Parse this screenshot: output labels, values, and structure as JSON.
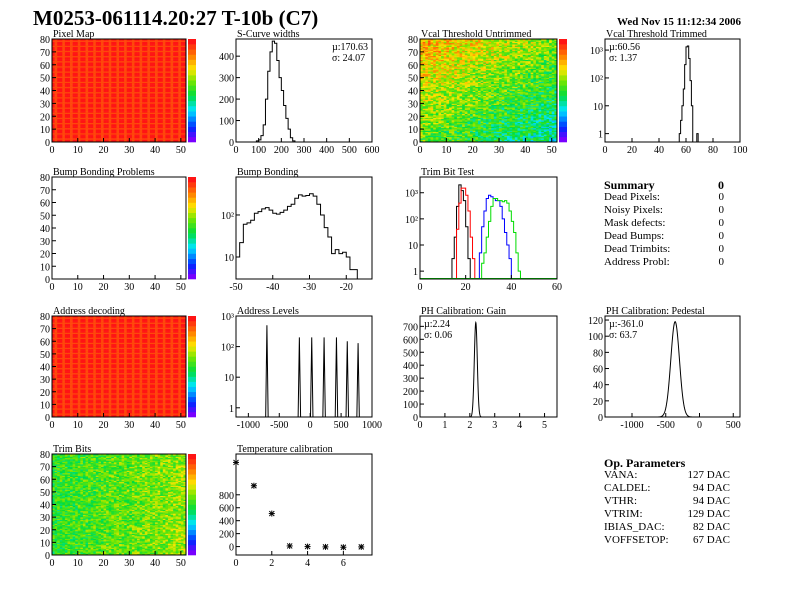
{
  "header": {
    "title": "M0253-061114.20:27 T-10b (C7)",
    "date": "Wed Nov 15 11:12:34 2006"
  },
  "summary": {
    "title": "Summary",
    "total": "0",
    "rows": [
      {
        "label": "Dead Pixels:",
        "value": "0"
      },
      {
        "label": "Noisy Pixels:",
        "value": "0"
      },
      {
        "label": "Mask defects:",
        "value": "0"
      },
      {
        "label": "Dead Bumps:",
        "value": "0"
      },
      {
        "label": "Dead Trimbits:",
        "value": "0"
      },
      {
        "label": "Address Probl:",
        "value": "0"
      }
    ]
  },
  "op_params": {
    "title": "Op. Parameters",
    "rows": [
      {
        "label": "VANA:",
        "value": "127 DAC"
      },
      {
        "label": "CALDEL:",
        "value": "94 DAC"
      },
      {
        "label": "VTHR:",
        "value": "94 DAC"
      },
      {
        "label": "VTRIM:",
        "value": "129 DAC"
      },
      {
        "label": "IBIAS_DAC:",
        "value": "82 DAC"
      },
      {
        "label": "VOFFSETOP:",
        "value": "67 DAC"
      }
    ]
  },
  "chart_data": [
    {
      "id": "pixel-map",
      "type": "heatmap",
      "title": "Pixel Map",
      "xlim": [
        0,
        52
      ],
      "ylim": [
        0,
        80
      ],
      "xticks": [
        0,
        10,
        20,
        30,
        40,
        50
      ],
      "yticks": [
        0,
        10,
        20,
        30,
        40,
        50,
        60,
        70,
        80
      ],
      "zlim": [
        0,
        10
      ],
      "pattern": "uniform-max"
    },
    {
      "id": "s-curve-widths",
      "type": "bar",
      "title": "S-Curve widths",
      "xlim": [
        0,
        600
      ],
      "ylim": [
        0,
        480
      ],
      "xticks": [
        0,
        100,
        200,
        300,
        400,
        500,
        600
      ],
      "yticks": [
        0,
        100,
        200,
        300,
        400
      ],
      "stats": [
        "µ:170.63",
        "σ: 24.07"
      ],
      "bin_start": 90,
      "bin_width": 10,
      "series": [
        {
          "color": "#000000",
          "values": [
            5,
            10,
            30,
            80,
            200,
            330,
            420,
            470,
            460,
            380,
            300,
            240,
            170,
            110,
            60,
            20,
            5
          ]
        }
      ]
    },
    {
      "id": "vcal-threshold-untrimmed",
      "type": "heatmap",
      "title": "Vcal Threshold Untrimmed",
      "xlim": [
        0,
        52
      ],
      "ylim": [
        0,
        80
      ],
      "xticks": [
        0,
        10,
        20,
        30,
        40,
        50
      ],
      "yticks": [
        0,
        10,
        20,
        30,
        40,
        50,
        60,
        70,
        80
      ],
      "zlim": [
        88,
        126
      ],
      "pattern": "gradient-noise"
    },
    {
      "id": "vcal-threshold-trimmed",
      "type": "bar",
      "title": "Vcal Threshold Trimmed",
      "log": true,
      "xlim": [
        0,
        100
      ],
      "ylim": [
        0.5,
        2500
      ],
      "xticks": [
        0,
        20,
        40,
        60,
        80,
        100
      ],
      "yticks": [
        1,
        10,
        100,
        1000
      ],
      "ytick_labels": [
        "1",
        "10",
        "10²",
        "10³"
      ],
      "stats": [
        "µ:60.56",
        "σ: 1.37"
      ],
      "bin_start": 55,
      "bin_width": 1,
      "series": [
        {
          "color": "#000000",
          "values": [
            1,
            3,
            10,
            40,
            300,
            1300,
            1400,
            500,
            80,
            10,
            0,
            0,
            0,
            1
          ]
        }
      ]
    },
    {
      "id": "bump-bonding-problems",
      "type": "heatmap",
      "title": "Bump Bonding Problems",
      "xlim": [
        0,
        52
      ],
      "ylim": [
        0,
        80
      ],
      "xticks": [
        0,
        10,
        20,
        30,
        40,
        50
      ],
      "yticks": [
        0,
        10,
        20,
        30,
        40,
        50,
        60,
        70,
        80
      ],
      "zlim": [
        -2,
        2
      ],
      "pattern": "empty"
    },
    {
      "id": "bump-bonding",
      "type": "bar",
      "title": "Bump Bonding",
      "log": true,
      "xlim": [
        -50,
        -13
      ],
      "ylim": [
        3,
        800
      ],
      "xticks": [
        -50,
        -40,
        -30,
        -20
      ],
      "yticks": [
        10,
        100
      ],
      "ytick_labels": [
        "10",
        "10²"
      ],
      "bin_start": -50,
      "bin_width": 1,
      "series": [
        {
          "color": "#000000",
          "values": [
            10,
            22,
            60,
            65,
            75,
            110,
            120,
            140,
            150,
            130,
            110,
            105,
            115,
            130,
            160,
            180,
            250,
            300,
            280,
            290,
            320,
            280,
            180,
            100,
            50,
            30,
            12,
            15,
            12,
            13,
            10,
            5,
            5
          ]
        }
      ]
    },
    {
      "id": "trim-bit-test",
      "type": "bar",
      "title": "Trim Bit Test",
      "log": true,
      "xlim": [
        0,
        60
      ],
      "ylim": [
        0.5,
        4000
      ],
      "xticks": [
        0,
        20,
        40,
        60
      ],
      "yticks": [
        1,
        10,
        100,
        1000
      ],
      "ytick_labels": [
        "1",
        "10",
        "10²",
        "10³"
      ],
      "bin_width": 1,
      "series": [
        {
          "color": "#000000",
          "bin_start": 14,
          "values": [
            3,
            20,
            300,
            2000,
            1200,
            500,
            50,
            3
          ]
        },
        {
          "color": "#ff0000",
          "bin_start": 16,
          "values": [
            40,
            400,
            1500,
            1500,
            800,
            200,
            20,
            3
          ]
        },
        {
          "color": "#0000ff",
          "bin_start": 26,
          "values": [
            5,
            50,
            200,
            600,
            800,
            700,
            600,
            500,
            500,
            300,
            100,
            30,
            10,
            3
          ]
        },
        {
          "color": "#00dd00",
          "bin_start": 27,
          "values": [
            2,
            5,
            20,
            80,
            300,
            600,
            600,
            500,
            500,
            450,
            500,
            400,
            200,
            80,
            30,
            5,
            1
          ]
        }
      ]
    },
    {
      "id": "address-decoding",
      "type": "heatmap",
      "title": "Address decoding",
      "xlim": [
        0,
        52
      ],
      "ylim": [
        0,
        80
      ],
      "xticks": [
        0,
        10,
        20,
        30,
        40,
        50
      ],
      "yticks": [
        0,
        10,
        20,
        30,
        40,
        50,
        60,
        70,
        80
      ],
      "zlim": [
        0,
        1
      ],
      "pattern": "uniform-max"
    },
    {
      "id": "address-levels",
      "type": "bar",
      "title": "Address Levels",
      "log": true,
      "xlim": [
        -1200,
        1000
      ],
      "ylim": [
        0.5,
        1000
      ],
      "xticks": [
        -1000,
        -500,
        0,
        500,
        1000
      ],
      "yticks": [
        1,
        10,
        100,
        1000
      ],
      "ytick_labels": [
        "1",
        "10",
        "10²",
        "10³"
      ],
      "peaks": [
        {
          "x": -700,
          "height": 500
        },
        {
          "x": -175,
          "height": 200
        },
        {
          "x": 25,
          "height": 200
        },
        {
          "x": 225,
          "height": 200
        },
        {
          "x": 425,
          "height": 200
        },
        {
          "x": 600,
          "height": 150
        },
        {
          "x": 775,
          "height": 130
        }
      ],
      "series": [
        {
          "color": "#000000"
        }
      ]
    },
    {
      "id": "ph-calibration-gain",
      "type": "bar",
      "title": "PH Calibration: Gain",
      "xlim": [
        0,
        5.5
      ],
      "ylim": [
        0,
        780
      ],
      "xticks": [
        0,
        1,
        2,
        3,
        4,
        5
      ],
      "yticks": [
        0,
        100,
        200,
        300,
        400,
        500,
        600,
        700
      ],
      "stats": [
        "µ:2.24",
        "σ: 0.06"
      ],
      "gauss": {
        "mean": 2.24,
        "sigma": 0.06,
        "peak": 730
      },
      "series": [
        {
          "color": "#000000"
        }
      ]
    },
    {
      "id": "ph-calibration-pedestal",
      "type": "bar",
      "title": "PH Calibration: Pedestal",
      "xlim": [
        -1400,
        600
      ],
      "ylim": [
        0,
        125
      ],
      "xticks": [
        -1000,
        -500,
        0,
        500
      ],
      "yticks": [
        0,
        20,
        40,
        60,
        80,
        100,
        120
      ],
      "stats": [
        "µ:-361.0",
        "σ: 63.7"
      ],
      "gauss": {
        "mean": -361,
        "sigma": 63.7,
        "peak": 118
      },
      "series": [
        {
          "color": "#000000"
        }
      ]
    },
    {
      "id": "trim-bits",
      "type": "heatmap",
      "title": "Trim Bits",
      "xlim": [
        0,
        52
      ],
      "ylim": [
        0,
        80
      ],
      "xticks": [
        0,
        10,
        20,
        30,
        40,
        50
      ],
      "yticks": [
        0,
        10,
        20,
        30,
        40,
        50,
        60,
        70,
        80
      ],
      "zlim": [
        0,
        16
      ],
      "pattern": "trim-noise"
    },
    {
      "id": "temperature-calibration",
      "type": "scatter",
      "title": "Temperature calibration",
      "xlim": [
        0,
        7.6
      ],
      "ylim": [
        -130,
        1430
      ],
      "xticks": [
        0,
        2,
        4,
        6
      ],
      "yticks": [
        0,
        200,
        400,
        600,
        800
      ],
      "series": [
        {
          "color": "#000000",
          "x": [
            0,
            1,
            2,
            3,
            4,
            5,
            6,
            7
          ],
          "y": [
            1300,
            940,
            510,
            10,
            0,
            -5,
            -10,
            -5
          ]
        }
      ]
    }
  ]
}
